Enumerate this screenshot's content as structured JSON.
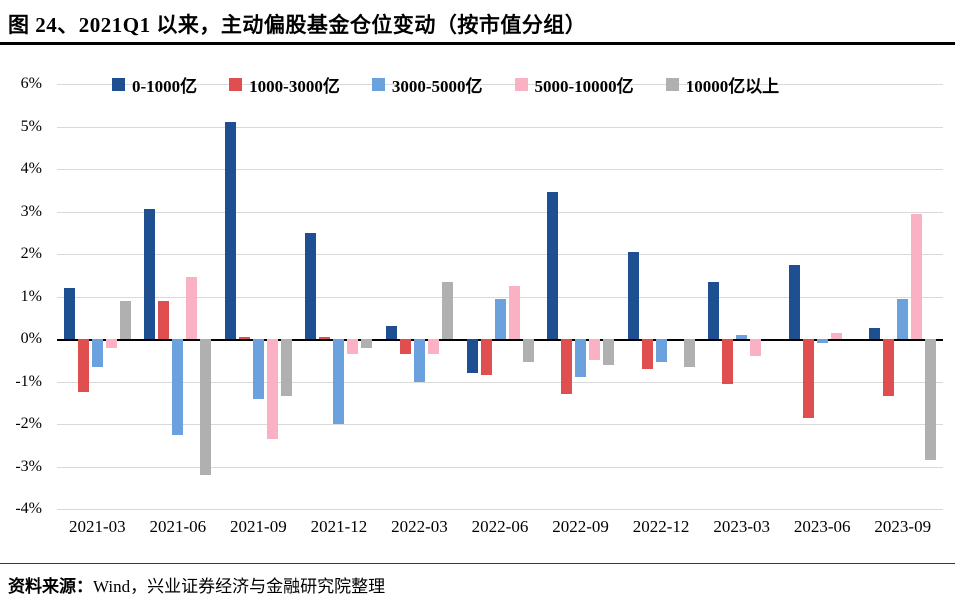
{
  "title": "图 24、2021Q1 以来，主动偏股基金仓位变动（按市值分组）",
  "source": {
    "label": "资料来源：",
    "text": "Wind，兴业证券经济与金融研究院整理"
  },
  "chart_data": {
    "type": "bar",
    "title": "2021Q1 以来，主动偏股基金仓位变动（按市值分组）",
    "categories": [
      "2021-03",
      "2021-06",
      "2021-09",
      "2021-12",
      "2022-03",
      "2022-06",
      "2022-09",
      "2022-12",
      "2023-03",
      "2023-06",
      "2023-09"
    ],
    "series": [
      {
        "name": "0-1000亿",
        "color": "#1e4f91",
        "values": [
          1.2,
          3.05,
          5.1,
          2.5,
          0.3,
          -0.8,
          3.45,
          2.05,
          1.35,
          1.75,
          0.25
        ]
      },
      {
        "name": "1000-3000亿",
        "color": "#e04f4f",
        "values": [
          -1.25,
          0.9,
          0.05,
          0.05,
          -0.35,
          -0.85,
          -1.3,
          -0.7,
          -1.05,
          -1.85,
          -1.35
        ]
      },
      {
        "name": "3000-5000亿",
        "color": "#6ba1dd",
        "values": [
          -0.65,
          -2.25,
          -1.4,
          -2.0,
          -1.0,
          0.95,
          -0.9,
          -0.55,
          0.1,
          -0.1,
          0.95
        ]
      },
      {
        "name": "5000-10000亿",
        "color": "#f9b1c3",
        "values": [
          -0.2,
          1.45,
          -2.35,
          -0.35,
          -0.35,
          1.25,
          -0.5,
          0,
          -0.4,
          0.15,
          2.95
        ]
      },
      {
        "name": "10000亿以上",
        "color": "#b0b0b0",
        "values": [
          0.9,
          -3.2,
          -1.35,
          -0.2,
          1.35,
          -0.55,
          -0.6,
          -0.65,
          0,
          0,
          -2.85
        ]
      }
    ],
    "ylim": [
      -4,
      6
    ],
    "ytick_labels": [
      "6%",
      "5%",
      "4%",
      "3%",
      "2%",
      "1%",
      "0%",
      "-1%",
      "-2%",
      "-3%",
      "-4%"
    ],
    "xlabel": "",
    "ylabel": "",
    "grid": true,
    "legend_position": "top",
    "zero_line_color": "#000000",
    "gridline_color": "#d9d9d9"
  }
}
